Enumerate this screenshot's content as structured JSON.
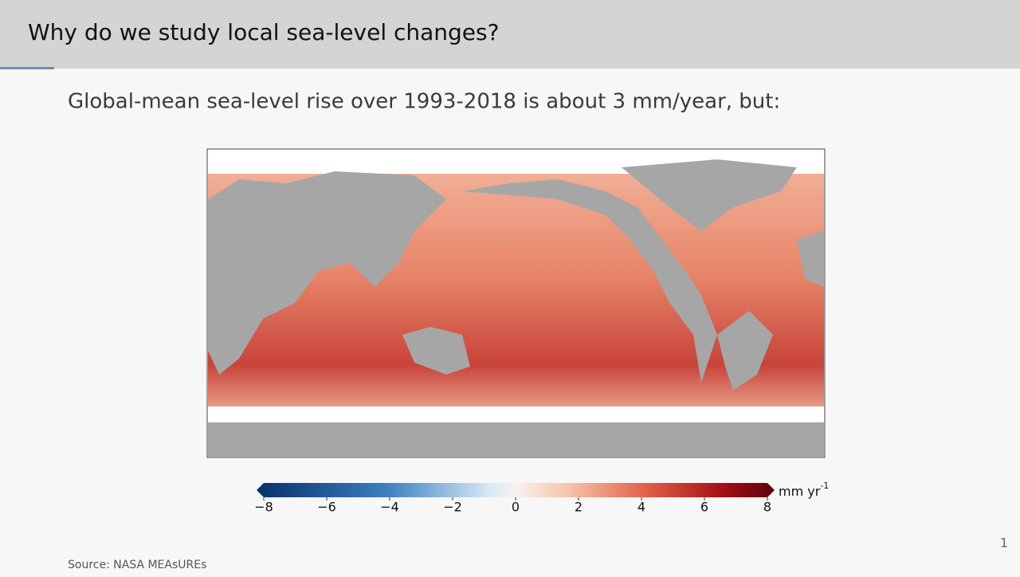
{
  "header": {
    "title": "Why do we study local sea-level changes?"
  },
  "subtitle": "Global-mean sea-level rise over 1993-2018 is about 3 mm/year, but:",
  "colorbar": {
    "lim": [
      -8,
      8
    ],
    "ticks": [
      {
        "value": -8,
        "label": "−8"
      },
      {
        "value": -6,
        "label": "−6"
      },
      {
        "value": -4,
        "label": "−4"
      },
      {
        "value": -2,
        "label": "−2"
      },
      0,
      2,
      4,
      6,
      8
    ],
    "unit": "mm yr",
    "unit_sup": "-1"
  },
  "source": "Source: NASA MEAsUREs",
  "page_number": "1"
}
